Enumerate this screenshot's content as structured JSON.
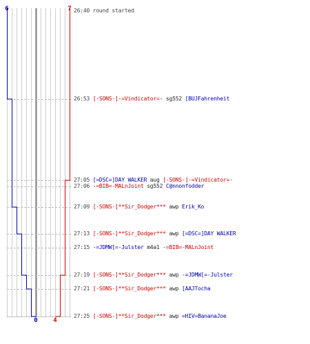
{
  "colors": {
    "red": "#cc0000",
    "blue": "#0000aa",
    "neutral": "#444444",
    "grid": "#cccccc",
    "center_line": "#777777"
  },
  "scores": {
    "blue_start": "6",
    "red_start": "7",
    "blue_end": "0",
    "red_end": "4"
  },
  "blue_alive": [
    6,
    5,
    5,
    5,
    4,
    3,
    3,
    2,
    1,
    1,
    0
  ],
  "red_alive": [
    7,
    7,
    6,
    6,
    6,
    6,
    6,
    5,
    5,
    4,
    4
  ],
  "events": [
    {
      "time": "26:40",
      "parts": [
        {
          "t": "round started",
          "c": "plain"
        }
      ]
    },
    {
      "time": "26:53",
      "parts": [
        {
          "t": "[-SONS-]-=Vindicator=-",
          "c": "red"
        },
        {
          "t": " sg552 ",
          "c": "weapon"
        },
        {
          "t": "[BUJFahrenheit",
          "c": "blue"
        }
      ]
    },
    {
      "time": "27:05",
      "parts": [
        {
          "t": "[=DSC=]DAY WALKER",
          "c": "blue"
        },
        {
          "t": " aug ",
          "c": "weapon"
        },
        {
          "t": "[-SONS-]-=Vindicator=-",
          "c": "red"
        }
      ]
    },
    {
      "time": "27:06",
      "parts": [
        {
          "t": "-=BIB=-MALnJoint",
          "c": "red"
        },
        {
          "t": " sg552 ",
          "c": "weapon"
        },
        {
          "t": "C@nnonfodder",
          "c": "blue"
        }
      ]
    },
    {
      "time": "27:09",
      "parts": [
        {
          "t": "[-SONS-]**Sir_Dodger***",
          "c": "red"
        },
        {
          "t": " awp ",
          "c": "weapon"
        },
        {
          "t": "Erik_Ko",
          "c": "blue"
        }
      ]
    },
    {
      "time": "27:13",
      "parts": [
        {
          "t": "[-SONS-]**Sir_Dodger***",
          "c": "red"
        },
        {
          "t": " awp ",
          "c": "weapon"
        },
        {
          "t": "[=DSC=]DAY WALKER",
          "c": "blue"
        }
      ]
    },
    {
      "time": "27:15",
      "parts": [
        {
          "t": "-=JDMW[=-Julster",
          "c": "blue"
        },
        {
          "t": " m4a1 ",
          "c": "weapon"
        },
        {
          "t": "-=BIB=-MALnJoint",
          "c": "red"
        }
      ]
    },
    {
      "time": "27:19",
      "parts": [
        {
          "t": "[-SONS-]**Sir_Dodger***",
          "c": "red"
        },
        {
          "t": " awp ",
          "c": "weapon"
        },
        {
          "t": "-=JDMW[=-Julster",
          "c": "blue"
        }
      ]
    },
    {
      "time": "27:21",
      "parts": [
        {
          "t": "[-SONS-]**Sir_Dodger***",
          "c": "red"
        },
        {
          "t": " awp ",
          "c": "weapon"
        },
        {
          "t": "[AAJTocha",
          "c": "blue"
        }
      ]
    },
    {
      "time": "27:25",
      "parts": [
        {
          "t": "[-SONS-]**Sir_Dodger***",
          "c": "red"
        },
        {
          "t": " awp ",
          "c": "weapon"
        },
        {
          "t": "=HIV=BananaJoe",
          "c": "blue"
        }
      ]
    }
  ]
}
